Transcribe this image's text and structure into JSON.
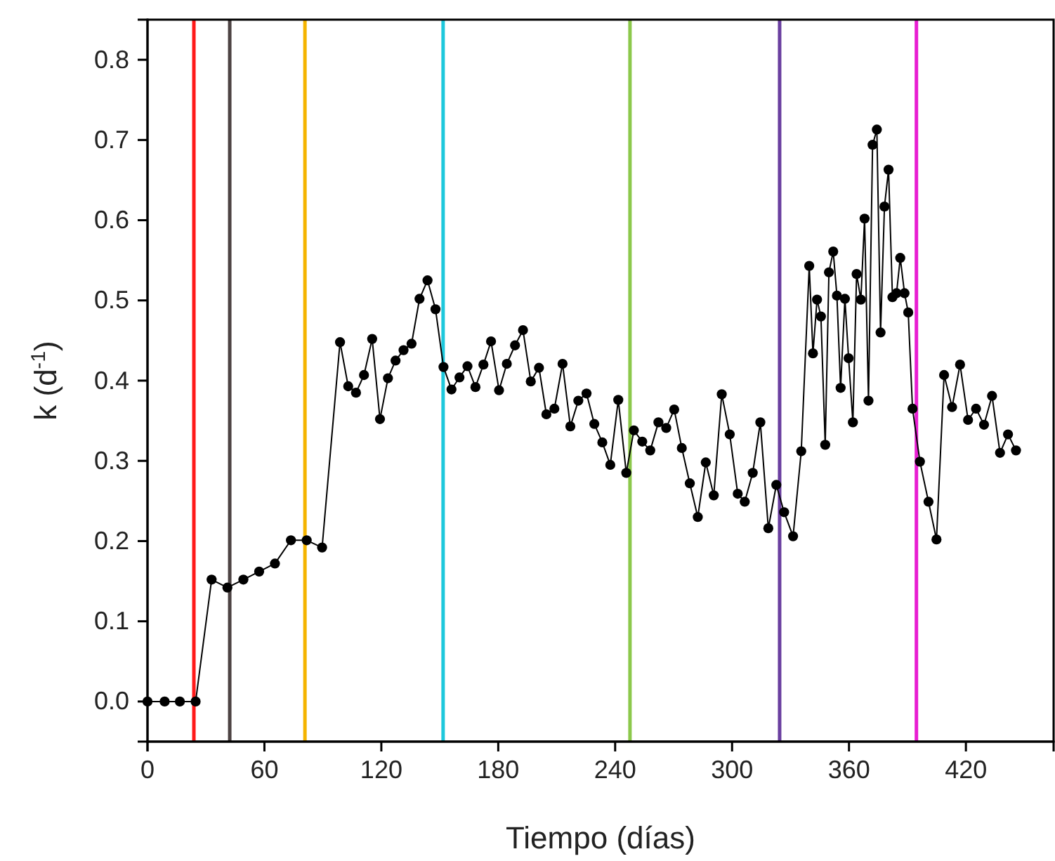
{
  "chart_data": {
    "type": "line",
    "xlabel": "Tiempo (días)",
    "ylabel": "k (d$^{-1}$)",
    "xlim": [
      0,
      465
    ],
    "ylim": [
      -0.05,
      0.85
    ],
    "xticks": [
      0,
      60,
      120,
      180,
      240,
      300,
      360,
      420
    ],
    "yticks": [
      {
        "value": 0,
        "label": "0.0"
      },
      {
        "value": 0.1,
        "label": "0.1"
      },
      {
        "value": 0.2,
        "label": "0.2"
      },
      {
        "value": 0.3,
        "label": "0.3"
      },
      {
        "value": 0.4,
        "label": "0.4"
      },
      {
        "value": 0.5,
        "label": "0.5"
      },
      {
        "value": 0.6,
        "label": "0.6"
      },
      {
        "value": 0.7,
        "label": "0.7"
      },
      {
        "value": 0.8,
        "label": "0.8"
      }
    ],
    "grid": false,
    "marker": "circle",
    "line_style": "solid",
    "x": [
      0,
      8.8,
      16.6,
      24.7,
      32.9,
      41,
      49.2,
      57.3,
      65.4,
      73.6,
      81.7,
      89.6,
      98.8,
      103,
      107,
      111.1,
      115.3,
      119.3,
      123.4,
      127.3,
      131.4,
      135.5,
      139.6,
      143.7,
      147.8,
      151.9,
      156,
      160.1,
      164.2,
      168.3,
      172.4,
      176.3,
      180.4,
      184.4,
      188.6,
      192.7,
      196.7,
      200.9,
      204.7,
      208.8,
      213,
      217,
      221.1,
      225.3,
      229.3,
      233.4,
      237.5,
      241.6,
      245.7,
      249.6,
      253.9,
      258,
      262.2,
      266.2,
      270.3,
      274.2,
      278.3,
      282.4,
      286.5,
      290.6,
      294.7,
      298.8,
      302.9,
      306.5,
      310.6,
      314.5,
      318.6,
      322.7,
      326.7,
      331.3,
      335.5,
      339.6,
      341.5,
      343.6,
      345.6,
      347.8,
      349.7,
      351.9,
      353.8,
      355.7,
      357.9,
      359.8,
      362,
      363.9,
      366.1,
      368,
      370,
      372.1,
      374.3,
      376.2,
      378.2,
      380.3,
      382.3,
      384.4,
      386.3,
      388.5,
      390.4,
      392.6,
      396.4,
      400.8,
      404.9,
      408.8,
      412.9,
      417,
      421.1,
      425.2,
      429.3,
      433.4,
      437.5,
      441.6,
      445.7
    ],
    "series": [
      {
        "color": "#000000",
        "values": [
          0,
          0,
          0,
          0,
          0.152,
          0.142,
          0.152,
          0.162,
          0.172,
          0.201,
          0.201,
          0.192,
          0.448,
          0.393,
          0.385,
          0.407,
          0.452,
          0.352,
          0.403,
          0.425,
          0.438,
          0.446,
          0.502,
          0.525,
          0.489,
          0.417,
          0.389,
          0.404,
          0.418,
          0.392,
          0.42,
          0.449,
          0.388,
          0.421,
          0.444,
          0.463,
          0.399,
          0.416,
          0.358,
          0.365,
          0.421,
          0.343,
          0.375,
          0.384,
          0.346,
          0.323,
          0.295,
          0.376,
          0.285,
          0.338,
          0.324,
          0.313,
          0.348,
          0.341,
          0.364,
          0.316,
          0.272,
          0.23,
          0.298,
          0.257,
          0.383,
          0.333,
          0.259,
          0.249,
          0.285,
          0.348,
          0.216,
          0.27,
          0.236,
          0.206,
          0.312,
          0.543,
          0.434,
          0.501,
          0.48,
          0.32,
          0.535,
          0.561,
          0.506,
          0.391,
          0.502,
          0.428,
          0.348,
          0.533,
          0.501,
          0.602,
          0.375,
          0.694,
          0.713,
          0.46,
          0.617,
          0.663,
          0.504,
          0.509,
          0.553,
          0.509,
          0.485,
          0.365,
          0.299,
          0.249,
          0.202,
          0.407,
          0.367,
          0.42,
          0.351,
          0.365,
          0.345,
          0.381,
          0.31,
          0.333,
          0.313
        ]
      }
    ],
    "ref_lines": [
      {
        "axis": "x",
        "value": 23.8,
        "color": "#ff1a1a"
      },
      {
        "axis": "x",
        "value": 42.2,
        "color": "#4d4343"
      },
      {
        "axis": "x",
        "value": 80.8,
        "color": "#f5b400"
      },
      {
        "axis": "x",
        "value": 151.7,
        "color": "#1ec8dc"
      },
      {
        "axis": "x",
        "value": 247.6,
        "color": "#8cc84b"
      },
      {
        "axis": "x",
        "value": 324.4,
        "color": "#6a3fa0"
      },
      {
        "axis": "x",
        "value": 394.6,
        "color": "#e81ed2"
      }
    ]
  }
}
